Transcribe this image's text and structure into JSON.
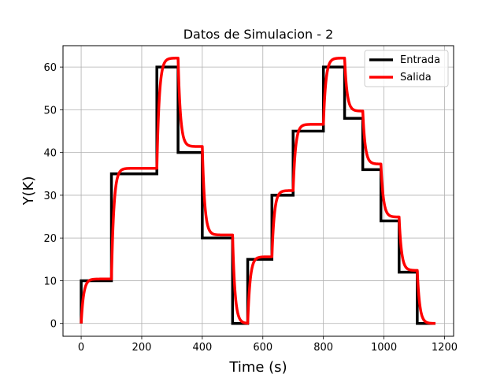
{
  "chart_data": {
    "type": "line",
    "title": "Datos de Simulacion - 2",
    "xlabel": "Time (s)",
    "ylabel": "Y(K)",
    "xlim": [
      -60,
      1230
    ],
    "ylim": [
      -3,
      65
    ],
    "xticks": [
      0,
      200,
      400,
      600,
      800,
      1000,
      1200
    ],
    "yticks": [
      0,
      10,
      20,
      30,
      40,
      50,
      60
    ],
    "grid": true,
    "legend_position": "top-right",
    "series": [
      {
        "name": "Entrada",
        "color": "#000000",
        "kind": "step",
        "points": [
          [
            0,
            0
          ],
          [
            0,
            10
          ],
          [
            100,
            10
          ],
          [
            100,
            35
          ],
          [
            250,
            35
          ],
          [
            250,
            60
          ],
          [
            320,
            60
          ],
          [
            320,
            40
          ],
          [
            400,
            40
          ],
          [
            400,
            20
          ],
          [
            500,
            20
          ],
          [
            500,
            0
          ],
          [
            550,
            0
          ],
          [
            550,
            15
          ],
          [
            630,
            15
          ],
          [
            630,
            30
          ],
          [
            700,
            30
          ],
          [
            700,
            45
          ],
          [
            800,
            45
          ],
          [
            800,
            60
          ],
          [
            870,
            60
          ],
          [
            870,
            48
          ],
          [
            930,
            48
          ],
          [
            930,
            36
          ],
          [
            990,
            36
          ],
          [
            990,
            24
          ],
          [
            1050,
            24
          ],
          [
            1050,
            12
          ],
          [
            1110,
            12
          ],
          [
            1110,
            0
          ],
          [
            1170,
            0
          ]
        ]
      },
      {
        "name": "Salida",
        "color": "#ff0000",
        "kind": "first-order-response",
        "tau": 8,
        "segments": [
          {
            "t0": 0,
            "t1": 100,
            "target": 10.4
          },
          {
            "t0": 100,
            "t1": 250,
            "target": 36.3
          },
          {
            "t0": 250,
            "t1": 320,
            "target": 62.1
          },
          {
            "t0": 320,
            "t1": 400,
            "target": 41.4
          },
          {
            "t0": 400,
            "t1": 500,
            "target": 20.7
          },
          {
            "t0": 500,
            "t1": 550,
            "target": 0
          },
          {
            "t0": 550,
            "t1": 630,
            "target": 15.6
          },
          {
            "t0": 630,
            "t1": 700,
            "target": 31.1
          },
          {
            "t0": 700,
            "t1": 800,
            "target": 46.6
          },
          {
            "t0": 800,
            "t1": 870,
            "target": 62.1
          },
          {
            "t0": 870,
            "t1": 930,
            "target": 49.7
          },
          {
            "t0": 930,
            "t1": 990,
            "target": 37.3
          },
          {
            "t0": 990,
            "t1": 1050,
            "target": 24.9
          },
          {
            "t0": 1050,
            "t1": 1110,
            "target": 12.4
          },
          {
            "t0": 1110,
            "t1": 1170,
            "target": 0
          }
        ]
      }
    ]
  }
}
